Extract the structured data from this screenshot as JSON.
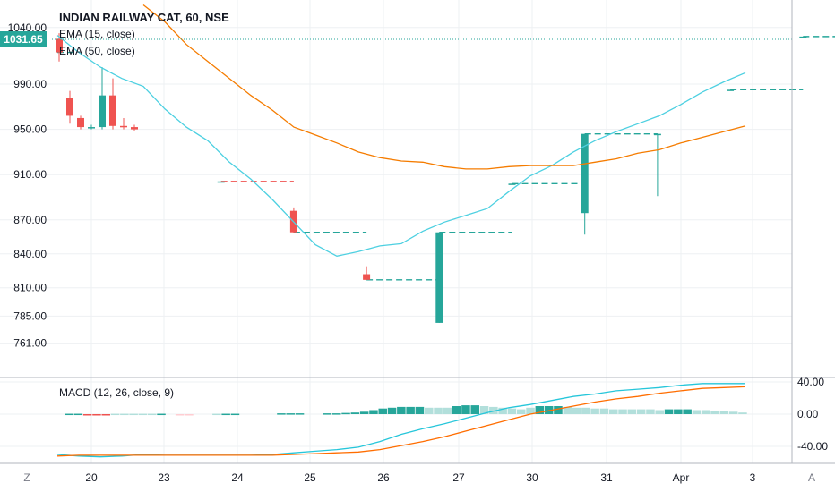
{
  "legend": {
    "title": "INDIAN RAILWAY CAT, 60, NSE",
    "ema15": "EMA (15, close)",
    "ema50": "EMA (50, close)",
    "macd": "MACD (12, 26, close, 9)"
  },
  "price_tag": "1031.65",
  "corner_left": "Z",
  "corner_right": "A",
  "colors": {
    "up": "#26a69a",
    "down": "#ef5350",
    "ema15": "#4dd0e1",
    "ema50": "#f57c00",
    "macd_line": "#26c6da",
    "signal_line": "#ff6d00",
    "hist_up_strong": "#26a69a",
    "hist_up_weak": "#b2dfdb",
    "hist_down_strong": "#ef5350",
    "hist_down_weak": "#ffcdd2",
    "grid": "#eef0f3",
    "text": "#131722",
    "axis": "#787b86"
  },
  "chart_data": [
    {
      "type": "candlestick",
      "panel": "price",
      "y_ticks": [
        "1040.00",
        "990.00",
        "950.00",
        "910.00",
        "870.00",
        "840.00",
        "810.00",
        "785.00",
        "761.00"
      ],
      "y_range": [
        750,
        1050
      ],
      "last_price": 1031.65,
      "x_tick_labels": [
        "20",
        "23",
        "24",
        "25",
        "26",
        "27",
        "30",
        "31",
        "Apr",
        "3"
      ],
      "candles": [
        {
          "x": 0,
          "o": 1030,
          "h": 1035,
          "l": 1010,
          "c": 1018
        },
        {
          "x": 1,
          "o": 978,
          "h": 984,
          "l": 955,
          "c": 962
        },
        {
          "x": 2,
          "o": 960,
          "h": 962,
          "l": 950,
          "c": 952
        },
        {
          "x": 3,
          "o": 952,
          "h": 954,
          "l": 950,
          "c": 952
        },
        {
          "x": 4,
          "o": 952,
          "h": 1005,
          "l": 950,
          "c": 980
        },
        {
          "x": 5,
          "o": 980,
          "h": 995,
          "l": 950,
          "c": 953
        },
        {
          "x": 6,
          "o": 953,
          "h": 960,
          "l": 950,
          "c": 952
        },
        {
          "x": 7,
          "o": 952,
          "h": 954,
          "l": 949,
          "c": 950
        },
        {
          "x": 9,
          "o": 904,
          "h": 904,
          "l": 904,
          "c": 904
        },
        {
          "x": 13,
          "o": 878,
          "h": 881,
          "l": 858,
          "c": 859
        },
        {
          "x": 17,
          "o": 822,
          "h": 829,
          "l": 817,
          "c": 817
        },
        {
          "x": 21,
          "o": 779,
          "h": 859,
          "l": 779,
          "c": 859
        },
        {
          "x": 25,
          "o": 902,
          "h": 902,
          "l": 902,
          "c": 902
        },
        {
          "x": 29,
          "o": 876,
          "h": 946,
          "l": 857,
          "c": 946
        },
        {
          "x": 33,
          "o": 946,
          "h": 946,
          "l": 891,
          "c": 946
        },
        {
          "x": 37,
          "o": 985,
          "h": 985,
          "l": 985,
          "c": 985
        },
        {
          "x": 41,
          "o": 1032,
          "h": 1032,
          "l": 1032,
          "c": 1032
        }
      ],
      "steps": [
        {
          "x0": 0,
          "x1": 1,
          "y": 1018,
          "col": "up"
        },
        {
          "x0": 9,
          "x1": 13,
          "y": 904,
          "col": "down"
        },
        {
          "x0": 13,
          "x1": 17,
          "y": 859,
          "col": "up"
        },
        {
          "x0": 17,
          "x1": 21,
          "y": 817,
          "col": "up"
        },
        {
          "x0": 21,
          "x1": 25,
          "y": 859,
          "col": "up"
        },
        {
          "x0": 25,
          "x1": 29,
          "y": 902,
          "col": "up"
        },
        {
          "x0": 29,
          "x1": 33,
          "y": 946,
          "col": "up"
        },
        {
          "x0": 37,
          "x1": 41,
          "y": 985,
          "col": "up"
        },
        {
          "x0": 41,
          "x1": 44,
          "y": 1032,
          "col": "up"
        }
      ],
      "ema15": [
        [
          0,
          1033
        ],
        [
          2,
          1018
        ],
        [
          4,
          1005
        ],
        [
          6,
          995
        ],
        [
          8,
          988
        ],
        [
          10,
          968
        ],
        [
          12,
          952
        ],
        [
          14,
          940
        ],
        [
          16,
          921
        ],
        [
          18,
          906
        ],
        [
          20,
          888
        ],
        [
          22,
          868
        ],
        [
          24,
          848
        ],
        [
          26,
          838
        ],
        [
          28,
          842
        ],
        [
          30,
          847
        ],
        [
          32,
          849
        ],
        [
          34,
          860
        ],
        [
          36,
          868
        ],
        [
          38,
          874
        ],
        [
          40,
          880
        ],
        [
          42,
          895
        ],
        [
          44,
          909
        ],
        [
          46,
          918
        ],
        [
          48,
          930
        ],
        [
          50,
          940
        ],
        [
          52,
          948
        ],
        [
          54,
          955
        ],
        [
          56,
          962
        ],
        [
          58,
          972
        ],
        [
          60,
          983
        ],
        [
          62,
          992
        ],
        [
          64,
          1000
        ]
      ],
      "ema50": [
        [
          8,
          1060
        ],
        [
          10,
          1045
        ],
        [
          12,
          1025
        ],
        [
          14,
          1010
        ],
        [
          16,
          995
        ],
        [
          18,
          980
        ],
        [
          20,
          967
        ],
        [
          22,
          952
        ],
        [
          24,
          945
        ],
        [
          26,
          938
        ],
        [
          28,
          930
        ],
        [
          30,
          925
        ],
        [
          32,
          922
        ],
        [
          34,
          921
        ],
        [
          36,
          917
        ],
        [
          38,
          915
        ],
        [
          40,
          915
        ],
        [
          42,
          917
        ],
        [
          44,
          918
        ],
        [
          46,
          918
        ],
        [
          48,
          918
        ],
        [
          50,
          921
        ],
        [
          52,
          924
        ],
        [
          54,
          929
        ],
        [
          56,
          932
        ],
        [
          58,
          938
        ],
        [
          60,
          943
        ],
        [
          62,
          948
        ],
        [
          64,
          953
        ]
      ]
    },
    {
      "type": "line",
      "panel": "macd",
      "y_ticks": [
        "40.00",
        "0.00",
        "-40.00"
      ],
      "y_range": [
        -55,
        42
      ],
      "macd": [
        [
          0,
          -50
        ],
        [
          2,
          -52
        ],
        [
          4,
          -53
        ],
        [
          6,
          -52
        ],
        [
          8,
          -50
        ],
        [
          10,
          -51
        ],
        [
          12,
          -51
        ],
        [
          14,
          -51
        ],
        [
          16,
          -51
        ],
        [
          18,
          -51
        ],
        [
          20,
          -50
        ],
        [
          22,
          -48
        ],
        [
          24,
          -46
        ],
        [
          26,
          -44
        ],
        [
          28,
          -41
        ],
        [
          30,
          -34
        ],
        [
          32,
          -25
        ],
        [
          34,
          -18
        ],
        [
          36,
          -12
        ],
        [
          38,
          -5
        ],
        [
          40,
          2
        ],
        [
          42,
          8
        ],
        [
          44,
          12
        ],
        [
          46,
          17
        ],
        [
          48,
          22
        ],
        [
          50,
          25
        ],
        [
          52,
          29
        ],
        [
          54,
          31
        ],
        [
          56,
          33
        ],
        [
          58,
          36
        ],
        [
          60,
          38
        ],
        [
          62,
          38
        ],
        [
          64,
          38
        ]
      ],
      "signal": [
        [
          0,
          -52
        ],
        [
          2,
          -51
        ],
        [
          4,
          -51
        ],
        [
          6,
          -51
        ],
        [
          8,
          -51
        ],
        [
          10,
          -51
        ],
        [
          12,
          -51
        ],
        [
          14,
          -51
        ],
        [
          16,
          -51
        ],
        [
          18,
          -51
        ],
        [
          20,
          -51
        ],
        [
          22,
          -50
        ],
        [
          24,
          -49
        ],
        [
          26,
          -48
        ],
        [
          28,
          -47
        ],
        [
          30,
          -44
        ],
        [
          32,
          -39
        ],
        [
          34,
          -34
        ],
        [
          36,
          -28
        ],
        [
          38,
          -21
        ],
        [
          40,
          -14
        ],
        [
          42,
          -7
        ],
        [
          44,
          0
        ],
        [
          46,
          5
        ],
        [
          48,
          10
        ],
        [
          50,
          15
        ],
        [
          52,
          19
        ],
        [
          54,
          22
        ],
        [
          56,
          26
        ],
        [
          58,
          29
        ],
        [
          60,
          32
        ],
        [
          62,
          33
        ],
        [
          64,
          34
        ]
      ],
      "histogram": [
        {
          "x": 1,
          "v": 0.5,
          "c": "up_strong"
        },
        {
          "x": 2,
          "v": 0.5,
          "c": "up_strong"
        },
        {
          "x": 3,
          "v": -0.5,
          "c": "down_strong"
        },
        {
          "x": 4,
          "v": -0.5,
          "c": "down_strong"
        },
        {
          "x": 5,
          "v": -0.5,
          "c": "down_strong"
        },
        {
          "x": 6,
          "v": 0.5,
          "c": "up_weak"
        },
        {
          "x": 7,
          "v": 0.5,
          "c": "up_weak"
        },
        {
          "x": 8,
          "v": 0.5,
          "c": "up_weak"
        },
        {
          "x": 9,
          "v": 0.5,
          "c": "up_weak"
        },
        {
          "x": 10,
          "v": 0.5,
          "c": "up_weak"
        },
        {
          "x": 11,
          "v": 0.5,
          "c": "up_strong"
        },
        {
          "x": 13,
          "v": -0.5,
          "c": "down_weak"
        },
        {
          "x": 14,
          "v": -0.5,
          "c": "down_weak"
        },
        {
          "x": 17,
          "v": 0.5,
          "c": "up_weak"
        },
        {
          "x": 18,
          "v": 0.5,
          "c": "up_strong"
        },
        {
          "x": 19,
          "v": 0.5,
          "c": "up_strong"
        },
        {
          "x": 24,
          "v": 1,
          "c": "up_strong"
        },
        {
          "x": 25,
          "v": 1,
          "c": "up_strong"
        },
        {
          "x": 26,
          "v": 1,
          "c": "up_strong"
        },
        {
          "x": 29,
          "v": 1,
          "c": "up_strong"
        },
        {
          "x": 30,
          "v": 1,
          "c": "up_strong"
        },
        {
          "x": 31,
          "v": 1.5,
          "c": "up_strong"
        },
        {
          "x": 32,
          "v": 2,
          "c": "up_strong"
        },
        {
          "x": 33,
          "v": 3,
          "c": "up_strong"
        },
        {
          "x": 34,
          "v": 5,
          "c": "up_strong"
        },
        {
          "x": 35,
          "v": 7,
          "c": "up_strong"
        },
        {
          "x": 36,
          "v": 8,
          "c": "up_strong"
        },
        {
          "x": 37,
          "v": 9,
          "c": "up_strong"
        },
        {
          "x": 38,
          "v": 9,
          "c": "up_strong"
        },
        {
          "x": 39,
          "v": 9,
          "c": "up_strong"
        },
        {
          "x": 40,
          "v": 8,
          "c": "up_weak"
        },
        {
          "x": 41,
          "v": 8,
          "c": "up_weak"
        },
        {
          "x": 42,
          "v": 8,
          "c": "up_weak"
        },
        {
          "x": 43,
          "v": 10,
          "c": "up_strong"
        },
        {
          "x": 44,
          "v": 11,
          "c": "up_strong"
        },
        {
          "x": 45,
          "v": 11,
          "c": "up_strong"
        },
        {
          "x": 46,
          "v": 10,
          "c": "up_weak"
        },
        {
          "x": 47,
          "v": 9,
          "c": "up_weak"
        },
        {
          "x": 48,
          "v": 8,
          "c": "up_weak"
        },
        {
          "x": 49,
          "v": 7,
          "c": "up_weak"
        },
        {
          "x": 50,
          "v": 6,
          "c": "up_weak"
        },
        {
          "x": 51,
          "v": 8,
          "c": "up_weak"
        },
        {
          "x": 52,
          "v": 10,
          "c": "up_strong"
        },
        {
          "x": 53,
          "v": 10,
          "c": "up_strong"
        },
        {
          "x": 54,
          "v": 10,
          "c": "up_strong"
        },
        {
          "x": 55,
          "v": 9,
          "c": "up_weak"
        },
        {
          "x": 56,
          "v": 8,
          "c": "up_weak"
        },
        {
          "x": 57,
          "v": 8,
          "c": "up_weak"
        },
        {
          "x": 58,
          "v": 7,
          "c": "up_weak"
        },
        {
          "x": 59,
          "v": 7,
          "c": "up_weak"
        },
        {
          "x": 60,
          "v": 6,
          "c": "up_weak"
        },
        {
          "x": 61,
          "v": 6,
          "c": "up_weak"
        },
        {
          "x": 62,
          "v": 6,
          "c": "up_weak"
        },
        {
          "x": 63,
          "v": 6,
          "c": "up_weak"
        },
        {
          "x": 64,
          "v": 6,
          "c": "up_weak"
        },
        {
          "x": 65,
          "v": 5,
          "c": "up_weak"
        },
        {
          "x": 66,
          "v": 6,
          "c": "up_strong"
        },
        {
          "x": 67,
          "v": 6,
          "c": "up_strong"
        },
        {
          "x": 68,
          "v": 6,
          "c": "up_strong"
        },
        {
          "x": 69,
          "v": 5,
          "c": "up_weak"
        },
        {
          "x": 70,
          "v": 5,
          "c": "up_weak"
        },
        {
          "x": 71,
          "v": 4,
          "c": "up_weak"
        },
        {
          "x": 72,
          "v": 4,
          "c": "up_weak"
        },
        {
          "x": 73,
          "v": 3,
          "c": "up_weak"
        },
        {
          "x": 74,
          "v": 2,
          "c": "up_weak"
        }
      ]
    }
  ]
}
